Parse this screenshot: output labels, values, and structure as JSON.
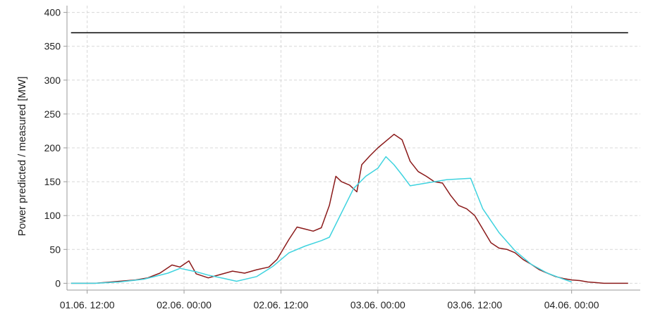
{
  "chart_data": {
    "type": "line",
    "title": "",
    "xlabel": "",
    "ylabel": "Power predicted / measured [MW]",
    "x_unit": "hours since 01.06. 00:00",
    "xlim": [
      9.5,
      80.5
    ],
    "ylim": [
      -10,
      410
    ],
    "yticks": [
      0,
      50,
      100,
      150,
      200,
      250,
      300,
      350,
      400
    ],
    "xticks": [
      {
        "value": 12,
        "label": "01.06. 12:00"
      },
      {
        "value": 24,
        "label": "02.06. 00:00"
      },
      {
        "value": 36,
        "label": "02.06. 12:00"
      },
      {
        "value": 48,
        "label": "03.06. 00:00"
      },
      {
        "value": 60,
        "label": "03.06. 12:00"
      },
      {
        "value": 72,
        "label": "04.06. 00:00"
      }
    ],
    "grid": true,
    "legend": "none",
    "series": [
      {
        "color": "#000000",
        "x": [
          10,
          79
        ],
        "y": [
          370,
          370
        ]
      },
      {
        "color": "#8b1a1a",
        "x": [
          10,
          13,
          16,
          18,
          19.5,
          21,
          22.5,
          23.5,
          24.6,
          25.5,
          27,
          28.5,
          30,
          31.5,
          33,
          34.5,
          35.5,
          37,
          38,
          39,
          40,
          41,
          42,
          42.8,
          43.5,
          44.5,
          45.4,
          46,
          47,
          48,
          49,
          50,
          51,
          52,
          53,
          54,
          55,
          56,
          57,
          58,
          59,
          60,
          61,
          62,
          63,
          64,
          65,
          66,
          67,
          68,
          69,
          70,
          71,
          72,
          73,
          74,
          75,
          76,
          77,
          78,
          79
        ],
        "y": [
          0,
          0,
          3,
          5,
          8,
          15,
          27,
          24,
          33,
          14,
          8,
          13,
          18,
          15,
          20,
          24,
          35,
          65,
          83,
          80,
          77,
          82,
          115,
          158,
          150,
          145,
          135,
          175,
          188,
          200,
          210,
          220,
          212,
          180,
          165,
          158,
          150,
          148,
          130,
          115,
          110,
          100,
          80,
          60,
          52,
          50,
          45,
          35,
          28,
          20,
          15,
          10,
          7,
          5,
          4,
          2,
          1,
          0,
          0,
          0,
          0
        ]
      },
      {
        "color": "#3fd3df",
        "x": [
          10,
          13,
          16,
          19,
          22,
          23.5,
          25.5,
          27,
          29,
          30.5,
          33,
          35,
          37,
          39,
          41,
          42,
          45,
          46.5,
          48,
          49,
          50,
          51,
          52,
          54,
          56.5,
          59.5,
          61,
          63,
          65,
          67,
          69,
          71,
          72
        ],
        "y": [
          0,
          0,
          2,
          6,
          15,
          22,
          17,
          12,
          7,
          3,
          10,
          25,
          45,
          55,
          63,
          68,
          140,
          158,
          170,
          187,
          175,
          160,
          144,
          148,
          153,
          155,
          110,
          75,
          48,
          28,
          15,
          6,
          2
        ]
      }
    ]
  }
}
